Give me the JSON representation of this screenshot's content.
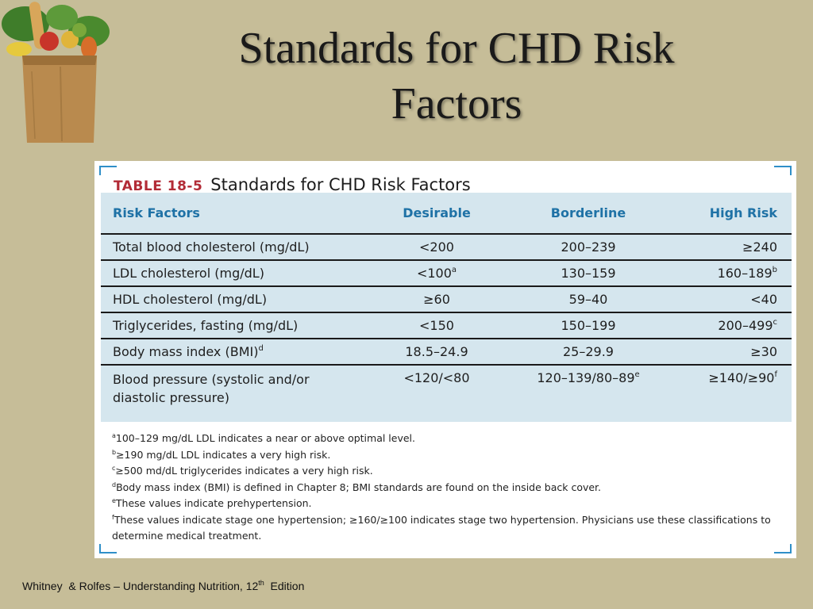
{
  "slide": {
    "title_line1": "Standards for CHD Risk",
    "title_line2": "Factors",
    "footer_left": "Whitney  & Rolfes – Understanding Nutrition, 12",
    "footer_sup": "th",
    "footer_right": "  Edition"
  },
  "logo": {
    "icon": "grocery-bag-icon"
  },
  "table": {
    "number": "TABLE 18-5",
    "title": "Standards for CHD Risk Factors",
    "headers": [
      "Risk Factors",
      "Desirable",
      "Borderline",
      "High Risk"
    ],
    "rows": [
      {
        "factor": "Total blood cholesterol (mg/dL)",
        "factor_sup": "",
        "desirable": "<200",
        "desirable_sup": "",
        "borderline": "200–239",
        "borderline_sup": "",
        "high": "≥240",
        "high_sup": ""
      },
      {
        "factor": "LDL cholesterol (mg/dL)",
        "factor_sup": "",
        "desirable": "<100",
        "desirable_sup": "a",
        "borderline": "130–159",
        "borderline_sup": "",
        "high": "160–189",
        "high_sup": "b"
      },
      {
        "factor": "HDL cholesterol (mg/dL)",
        "factor_sup": "",
        "desirable": "≥60",
        "desirable_sup": "",
        "borderline": "59–40",
        "borderline_sup": "",
        "high": "<40",
        "high_sup": ""
      },
      {
        "factor": "Triglycerides, fasting (mg/dL)",
        "factor_sup": "",
        "desirable": "<150",
        "desirable_sup": "",
        "borderline": "150–199",
        "borderline_sup": "",
        "high": "200–499",
        "high_sup": "c"
      },
      {
        "factor": "Body mass index (BMI)",
        "factor_sup": "d",
        "desirable": "18.5–24.9",
        "desirable_sup": "",
        "borderline": "25–29.9",
        "borderline_sup": "",
        "high": "≥30",
        "high_sup": ""
      },
      {
        "factor_line1": "Blood pressure (systolic and/or",
        "factor_line2": "diastolic pressure)",
        "desirable": "<120/<80",
        "desirable_sup": "",
        "borderline": "120–139/80–89",
        "borderline_sup": "e",
        "high": "≥140/≥90",
        "high_sup": "f"
      }
    ],
    "notes": [
      {
        "mark": "a",
        "text": "100–129 mg/dL LDL indicates a near or above optimal level."
      },
      {
        "mark": "b",
        "text": "≥190 mg/dL LDL indicates a very high risk."
      },
      {
        "mark": "c",
        "text": "≥500 md/dL triglycerides indicates a very high risk."
      },
      {
        "mark": "d",
        "text": "Body mass index (BMI) is defined in Chapter 8; BMI standards are found on the inside back cover."
      },
      {
        "mark": "e",
        "text": "These values indicate prehypertension."
      },
      {
        "mark": "f",
        "text": "These values indicate stage one hypertension; ≥160/≥100 indicates stage two hypertension. Physicians use these classifications to determine medical treatment."
      }
    ]
  }
}
